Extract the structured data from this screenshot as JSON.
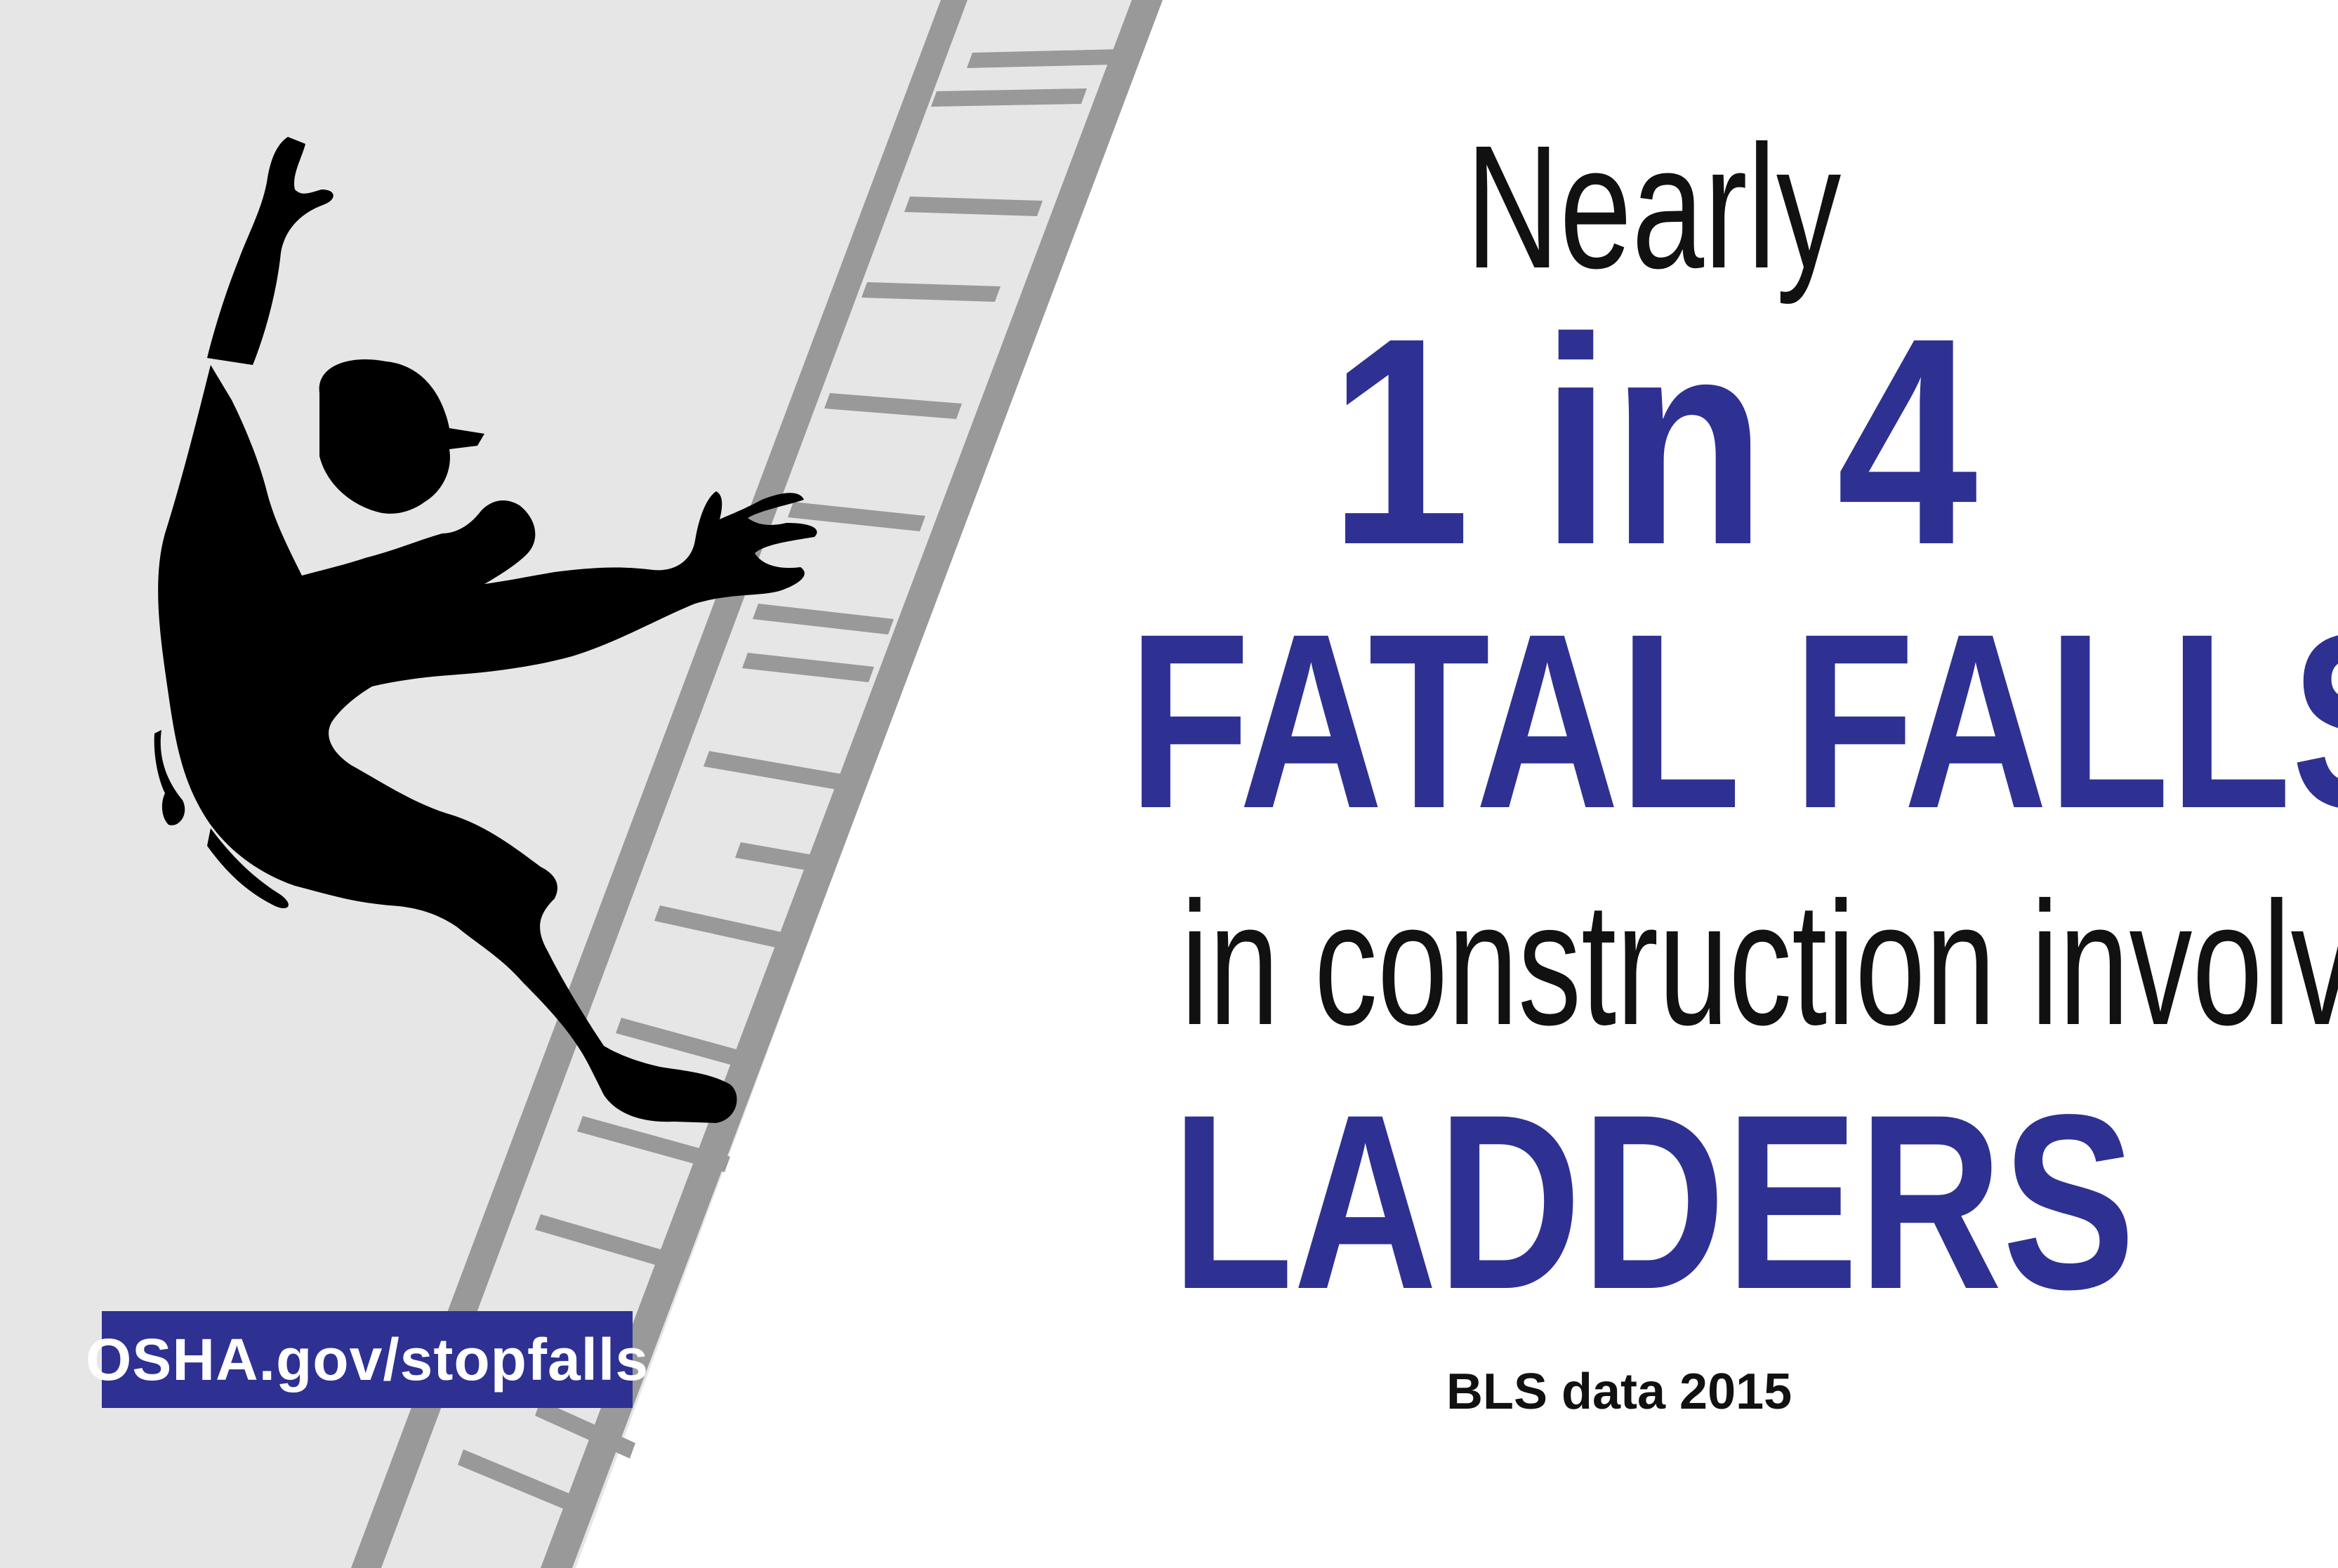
{
  "headline": {
    "line1": "Nearly",
    "line2": "1 in 4",
    "line3": "FATAL FALLS",
    "line4": "in construction involve",
    "line5": "LADDERS"
  },
  "source_note": "BLS data 2015",
  "link": {
    "label": "OSHA.gov/stopfalls"
  },
  "colors": {
    "accent_blue": "#2e3192",
    "panel_gray": "#e6e6e6",
    "ladder_gray": "#999999",
    "silhouette": "#000000",
    "text_dark": "#111111"
  },
  "icons": {
    "figure": "falling-worker-silhouette-icon",
    "ladder": "ladder-icon"
  }
}
